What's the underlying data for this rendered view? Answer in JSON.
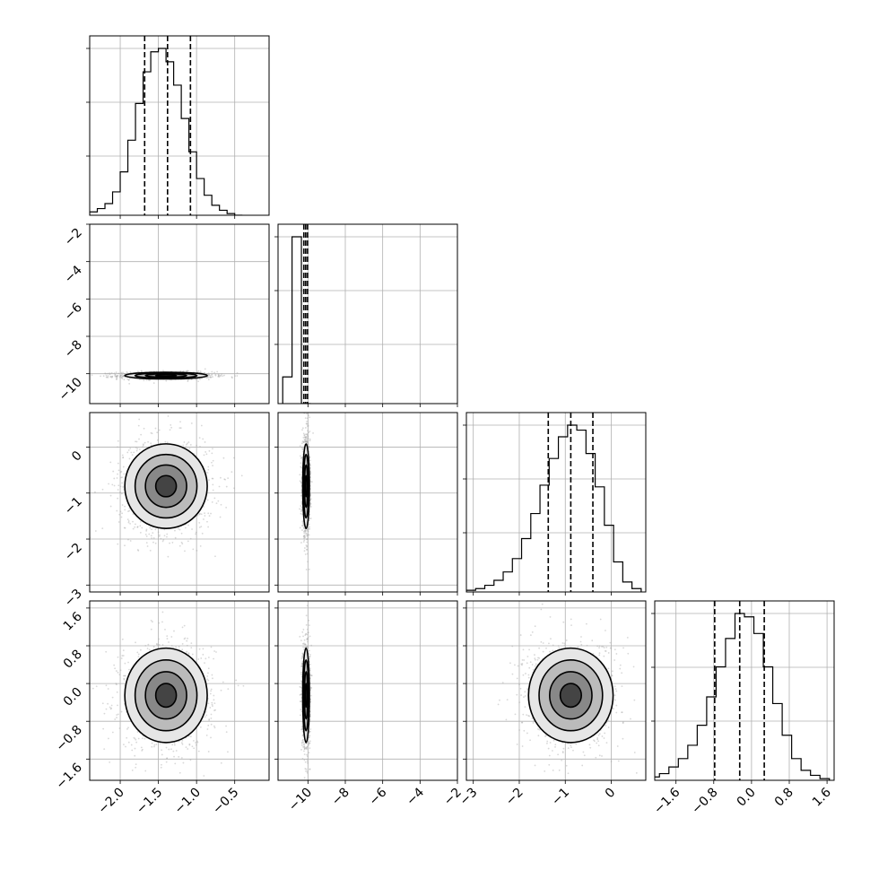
{
  "chart_data": {
    "type": "corner",
    "title": "",
    "parameters": [
      {
        "name": "",
        "range": [
          -2.4,
          -0.05
        ],
        "ticks": [
          -2.0,
          -1.5,
          -1.0,
          -0.5
        ],
        "tick_labels": [
          "−2.0",
          "−1.5",
          "−1.0",
          "−0.5"
        ],
        "mean": -1.4,
        "sd": 0.27,
        "quantiles": [
          -1.68,
          -1.38,
          -1.08
        ]
      },
      {
        "name": "",
        "range": [
          -11.6,
          -2.0
        ],
        "ticks": [
          -10,
          -8,
          -6,
          -4,
          -2
        ],
        "tick_labels": [
          "−10",
          "−8",
          "−6",
          "−4",
          "−2"
        ],
        "mean": -10.1,
        "sd": 0.09,
        "quantiles": [
          -10.22,
          -10.12,
          -10.02
        ]
      },
      {
        "name": "",
        "range": [
          -3.15,
          0.75
        ],
        "ticks": [
          -3,
          -2,
          -1,
          0
        ],
        "tick_labels": [
          "−3",
          "−2",
          "−1",
          "0"
        ],
        "mean": -0.88,
        "sd": 0.46,
        "quantiles": [
          -1.37,
          -0.88,
          -0.4
        ]
      },
      {
        "name": "",
        "range": [
          -2.05,
          1.75
        ],
        "ticks": [
          -1.6,
          -0.8,
          0.0,
          0.8,
          1.6
        ],
        "tick_labels": [
          "−1.6",
          "−0.8",
          "0.0",
          "0.8",
          "1.6"
        ],
        "mean": -0.25,
        "sd": 0.5,
        "quantiles": [
          -0.78,
          -0.25,
          0.27
        ]
      }
    ],
    "histograms": [
      {
        "param": 0,
        "bins": [
          -2.35,
          -2.25,
          -2.15,
          -2.05,
          -1.95,
          -1.85,
          -1.75,
          -1.65,
          -1.55,
          -1.45,
          -1.35,
          -1.25,
          -1.15,
          -1.05,
          -0.95,
          -0.85,
          -0.75,
          -0.65,
          -0.55,
          -0.45
        ],
        "counts": [
          2,
          4,
          7,
          14,
          26,
          45,
          67,
          86,
          98,
          100,
          92,
          78,
          58,
          38,
          22,
          12,
          6,
          3,
          1,
          0
        ]
      },
      {
        "param": 1,
        "bins": [
          -11.1,
          -10.6,
          -10.1
        ],
        "counts": [
          16,
          100,
          0
        ]
      },
      {
        "param": 2,
        "bins": [
          -3.05,
          -2.85,
          -2.65,
          -2.45,
          -2.25,
          -2.05,
          -1.85,
          -1.65,
          -1.45,
          -1.25,
          -1.05,
          -0.85,
          -0.65,
          -0.45,
          -0.25,
          -0.05,
          0.15,
          0.35,
          0.55
        ],
        "counts": [
          1,
          2,
          4,
          7,
          12,
          20,
          32,
          47,
          64,
          80,
          93,
          100,
          97,
          83,
          63,
          40,
          18,
          6,
          2
        ]
      },
      {
        "param": 3,
        "bins": [
          -2.05,
          -1.85,
          -1.65,
          -1.45,
          -1.25,
          -1.05,
          -0.85,
          -0.65,
          -0.45,
          -0.25,
          -0.05,
          0.15,
          0.35,
          0.55,
          0.75,
          0.95,
          1.15,
          1.35,
          1.55
        ],
        "counts": [
          2,
          4,
          8,
          13,
          21,
          33,
          50,
          68,
          85,
          100,
          98,
          88,
          68,
          46,
          27,
          13,
          6,
          3,
          1
        ]
      }
    ],
    "pairs": [
      {
        "x": 0,
        "y": 1,
        "center": [
          -1.4,
          -10.1
        ],
        "sd": [
          0.27,
          0.09
        ]
      },
      {
        "x": 0,
        "y": 2,
        "center": [
          -1.4,
          -0.85
        ],
        "sd": [
          0.27,
          0.46
        ]
      },
      {
        "x": 1,
        "y": 2,
        "center": [
          -10.1,
          -0.85
        ],
        "sd": [
          0.09,
          0.46
        ]
      },
      {
        "x": 0,
        "y": 3,
        "center": [
          -1.4,
          -0.25
        ],
        "sd": [
          0.27,
          0.5
        ]
      },
      {
        "x": 1,
        "y": 3,
        "center": [
          -10.1,
          -0.25
        ],
        "sd": [
          0.09,
          0.5
        ]
      },
      {
        "x": 2,
        "y": 3,
        "center": [
          -0.88,
          -0.25
        ],
        "sd": [
          0.46,
          0.5
        ]
      }
    ],
    "contour_levels_sigma": [
      0.5,
      1.0,
      1.5,
      2.0
    ],
    "quantile_lines": "dashed",
    "grid": true,
    "legend": "none"
  }
}
